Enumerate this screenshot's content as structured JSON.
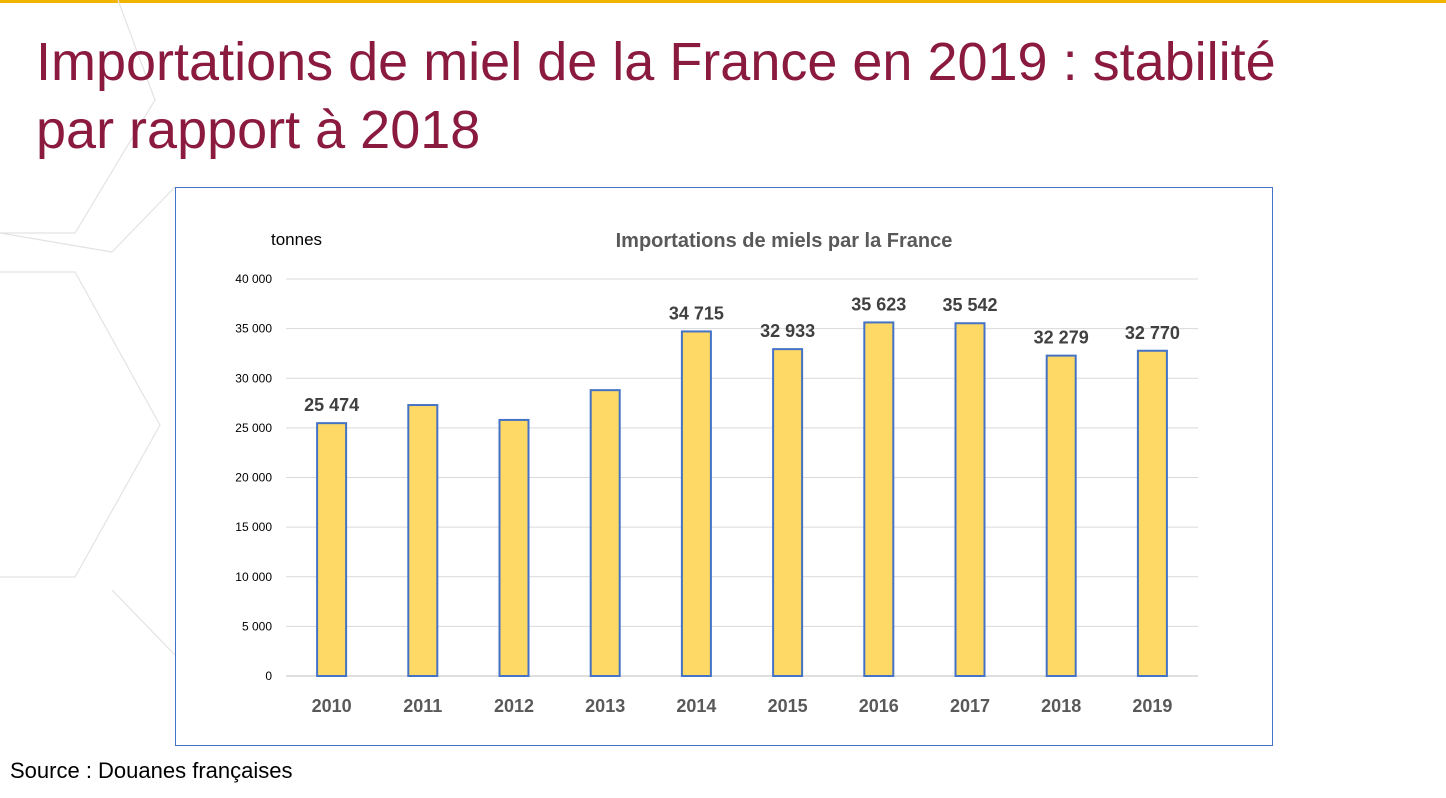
{
  "slide": {
    "title_line1": "Importations de miel de la France en 2019 : stabilité",
    "title_line2": "par rapport à 2018",
    "source": "Source : Douanes françaises"
  },
  "colors": {
    "title": "#8b1a3f",
    "accent_rule": "#f0b400",
    "bar_fill": "#ffd966",
    "bar_stroke": "#4472c4",
    "frame": "#4472c4"
  },
  "chart_data": {
    "type": "bar",
    "title": "Importations de miels  par la France",
    "unit_label": "tonnes",
    "categories": [
      "2010",
      "2011",
      "2012",
      "2013",
      "2014",
      "2015",
      "2016",
      "2017",
      "2018",
      "2019"
    ],
    "values": [
      25474,
      27300,
      25800,
      28800,
      34715,
      32933,
      35623,
      35542,
      32279,
      32770
    ],
    "data_labels": [
      "25 474",
      "",
      "",
      "",
      "34 715",
      "32 933",
      "35 623",
      "35 542",
      "32 279",
      "32 770"
    ],
    "ylim": [
      0,
      40000
    ],
    "yticks": [
      0,
      5000,
      10000,
      15000,
      20000,
      25000,
      30000,
      35000,
      40000
    ],
    "ytick_labels": [
      "0",
      "5 000",
      "10 000",
      "15 000",
      "20 000",
      "25 000",
      "30 000",
      "35 000",
      "40 000"
    ],
    "grid": true,
    "legend": "none"
  }
}
